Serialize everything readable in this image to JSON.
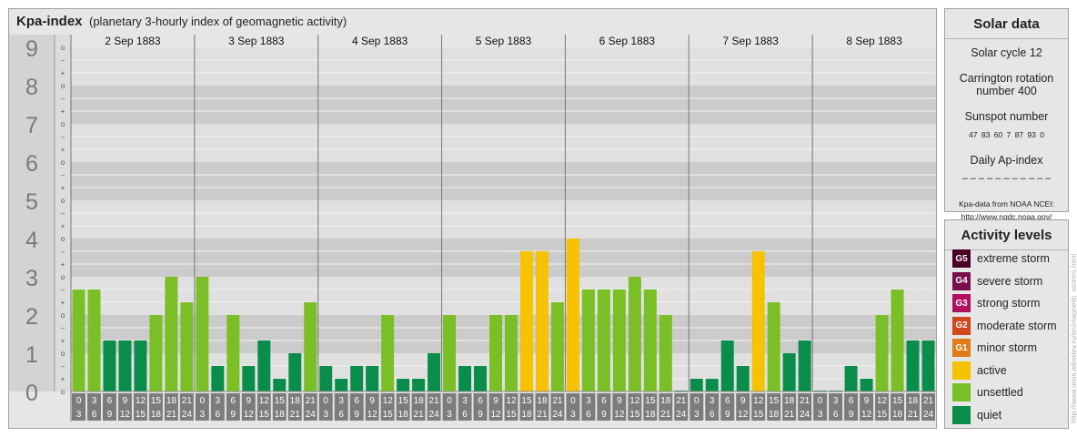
{
  "header": {
    "title": "Kpa-index",
    "subtitle": "(planetary 3-hourly index of geomagnetic activity)"
  },
  "colors": {
    "quiet": "#0a8d4b",
    "unsettled": "#7bbf27",
    "active": "#f7c200",
    "minor": "#e07c15",
    "moderate": "#d2461c",
    "strong": "#b0105d",
    "severe": "#7a0d4e",
    "extreme": "#4a0025"
  },
  "chart_data": {
    "type": "bar",
    "title": "Kpa-index",
    "ylim": [
      0,
      9
    ],
    "y_major_ticks": [
      "0",
      "1",
      "2",
      "3",
      "4",
      "5",
      "6",
      "7",
      "8",
      "9"
    ],
    "y_minor_ticks": [
      "o",
      "+",
      "–"
    ],
    "days": [
      "2 Sep 1883",
      "3 Sep 1883",
      "4 Sep 1883",
      "5 Sep 1883",
      "6 Sep 1883",
      "7 Sep 1883",
      "8 Sep 1883"
    ],
    "hour_start": [
      "0",
      "3",
      "6",
      "9",
      "12",
      "15",
      "18",
      "21"
    ],
    "hour_end": [
      "3",
      "6",
      "9",
      "12",
      "15",
      "18",
      "21",
      "24"
    ],
    "values": [
      [
        2.667,
        2.667,
        1.333,
        1.333,
        1.333,
        2.0,
        3.0,
        2.333
      ],
      [
        3.0,
        0.667,
        2.0,
        0.667,
        1.333,
        0.333,
        1.0,
        2.333
      ],
      [
        0.667,
        0.333,
        0.667,
        0.667,
        2.0,
        0.333,
        0.333,
        1.0
      ],
      [
        2.0,
        0.667,
        0.667,
        2.0,
        2.0,
        3.667,
        3.667,
        2.333
      ],
      [
        4.0,
        2.667,
        2.667,
        2.667,
        3.0,
        2.667,
        2.0,
        0.0
      ],
      [
        0.333,
        0.333,
        1.333,
        0.667,
        3.667,
        2.333,
        1.0,
        1.333
      ],
      [
        0.0,
        0.0,
        0.667,
        0.333,
        2.0,
        2.667,
        1.333,
        1.333
      ]
    ]
  },
  "solar": {
    "title": "Solar data",
    "cycle": "Solar cycle 12",
    "carrington_line1": "Carrington rotation",
    "carrington_line2": "number 400",
    "sunspot_label": "Sunspot number",
    "sunspot_values": "47 83 60 7 87 93 0",
    "ap_label": "Daily Ap-index",
    "ap_values": "– – – – – – – – – – –",
    "credit_line1": "Kpa-data from NOAA NCEI:",
    "credit_line2": "http://www.ngdc.noaa.gov/"
  },
  "levels": {
    "title": "Activity levels",
    "items": [
      {
        "badge": "G5",
        "label": "extreme storm",
        "color": "#4a0025"
      },
      {
        "badge": "G4",
        "label": "severe storm",
        "color": "#7a0d4e"
      },
      {
        "badge": "G3",
        "label": "strong storm",
        "color": "#b0105d"
      },
      {
        "badge": "G2",
        "label": "moderate storm",
        "color": "#d2461c"
      },
      {
        "badge": "G1",
        "label": "minor storm",
        "color": "#e07c15"
      },
      {
        "badge": "",
        "label": "active",
        "color": "#f7c200"
      },
      {
        "badge": "",
        "label": "unsettled",
        "color": "#7bbf27"
      },
      {
        "badge": "",
        "label": "quiet",
        "color": "#0a8d4b"
      }
    ]
  },
  "watermark": "http://www.tesis.lebedev.ru/en/magnetic_storms.html"
}
